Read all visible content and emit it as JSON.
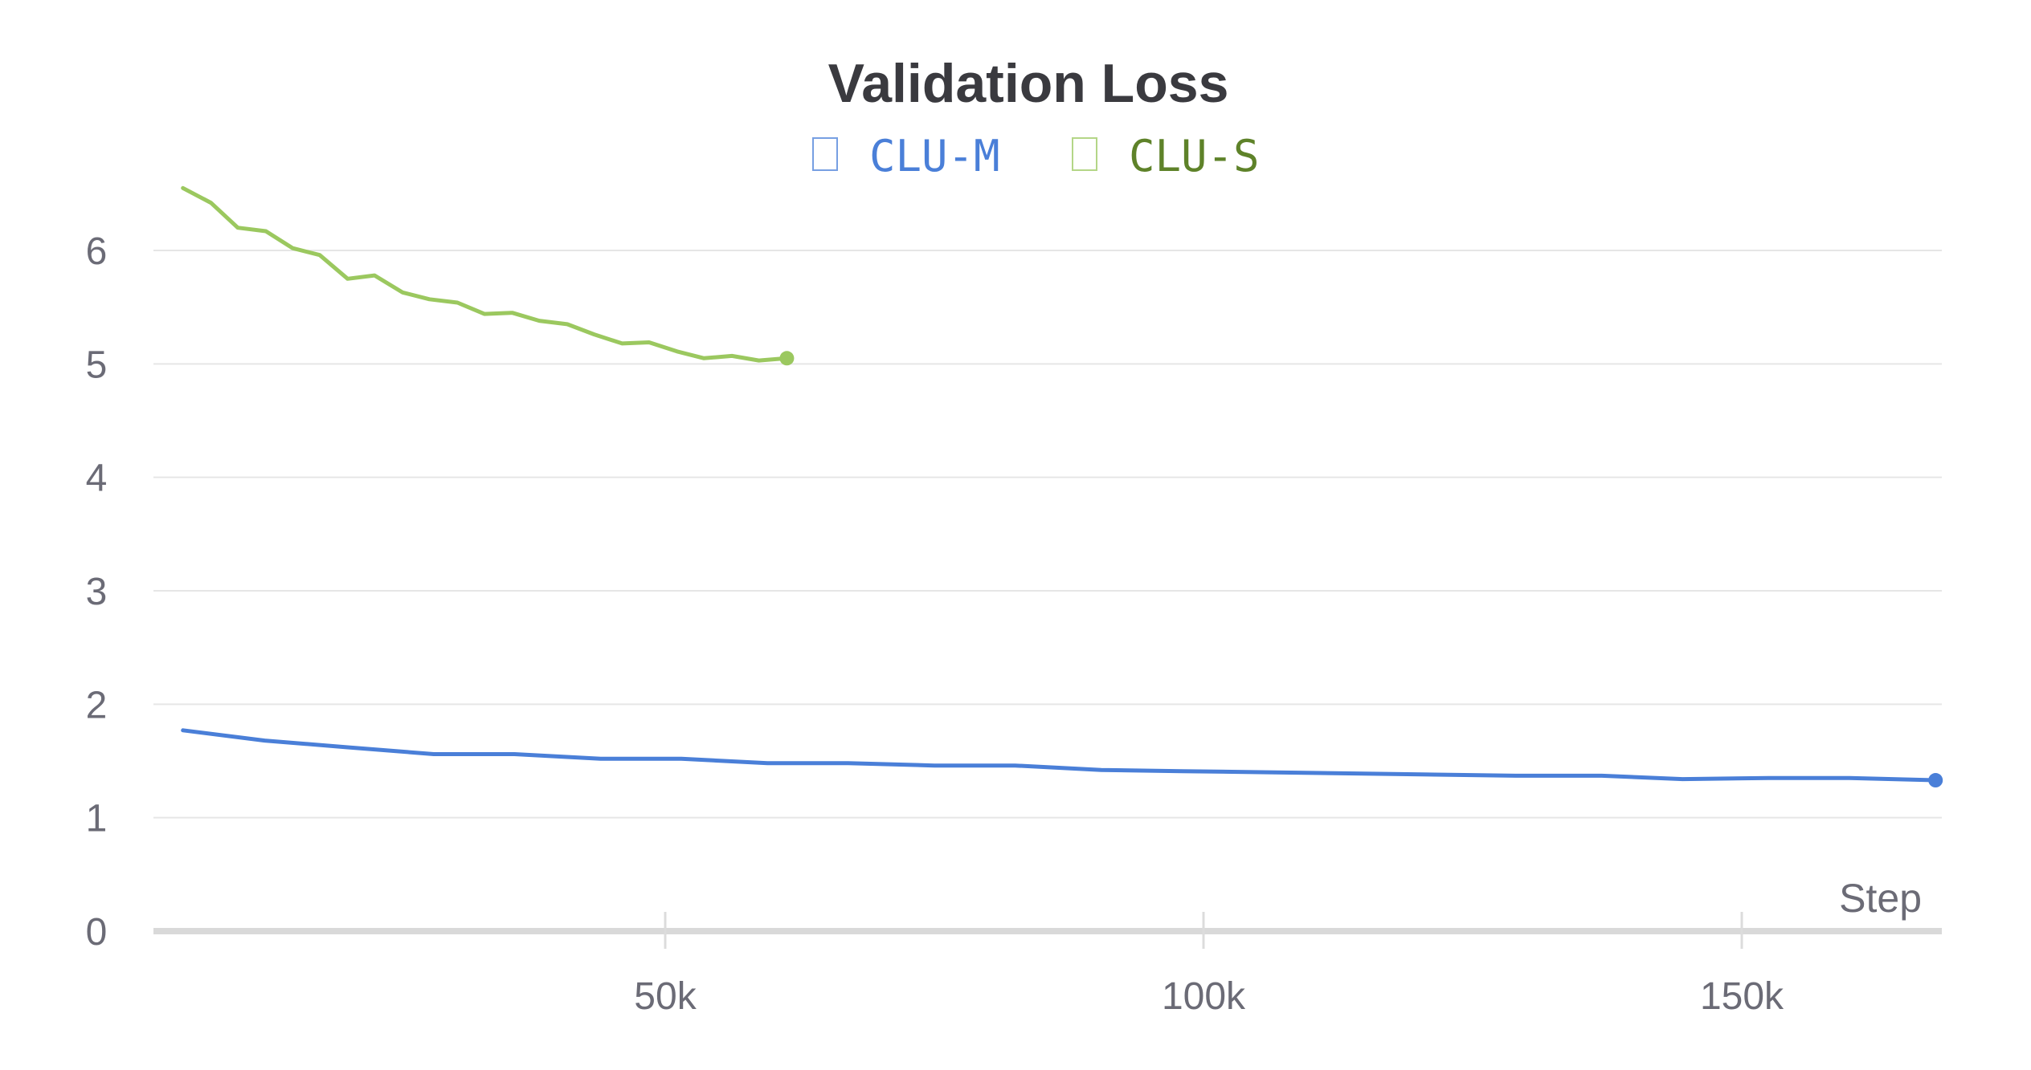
{
  "chart_data": {
    "type": "line",
    "title": "Validation Loss",
    "xlabel": "Step",
    "ylabel": "",
    "xlim": [
      0,
      168000
    ],
    "ylim": [
      0,
      6.5
    ],
    "x_ticks": [
      {
        "value": 50000,
        "label": "50k"
      },
      {
        "value": 100000,
        "label": "100k"
      },
      {
        "value": 150000,
        "label": "150k"
      }
    ],
    "y_ticks": [
      {
        "value": 0,
        "label": "0"
      },
      {
        "value": 1,
        "label": "1"
      },
      {
        "value": 2,
        "label": "2"
      },
      {
        "value": 3,
        "label": "3"
      },
      {
        "value": 4,
        "label": "4"
      },
      {
        "value": 5,
        "label": "5"
      },
      {
        "value": 6,
        "label": "6"
      }
    ],
    "grid": true,
    "legend_position": "top-center",
    "series": [
      {
        "name": "CLU-M",
        "color": "#4a7fd8",
        "legend_text_color": "#4a7fd8",
        "x": [
          5200,
          12800,
          20500,
          28500,
          36000,
          44000,
          51500,
          59500,
          67000,
          75000,
          82500,
          90500,
          98000,
          106000,
          113500,
          121500,
          129000,
          137000,
          144500,
          152500,
          160000,
          168000
        ],
        "y": [
          1.77,
          1.68,
          1.62,
          1.56,
          1.56,
          1.52,
          1.52,
          1.48,
          1.48,
          1.46,
          1.46,
          1.42,
          1.41,
          1.4,
          1.39,
          1.38,
          1.37,
          1.37,
          1.34,
          1.35,
          1.35,
          1.33
        ]
      },
      {
        "name": "CLU-S",
        "color": "#9bc85f",
        "legend_text_color": "#5e8229",
        "x": [
          5200,
          7800,
          10300,
          12900,
          15400,
          17900,
          20500,
          23000,
          25600,
          28100,
          30700,
          33200,
          35800,
          38300,
          40900,
          43400,
          46000,
          48500,
          51100,
          53600,
          56200,
          58700,
          61300
        ],
        "y": [
          6.55,
          6.42,
          6.2,
          6.17,
          6.02,
          5.96,
          5.75,
          5.78,
          5.63,
          5.57,
          5.54,
          5.44,
          5.45,
          5.38,
          5.35,
          5.26,
          5.18,
          5.19,
          5.11,
          5.05,
          5.07,
          5.03,
          5.05
        ]
      }
    ]
  }
}
